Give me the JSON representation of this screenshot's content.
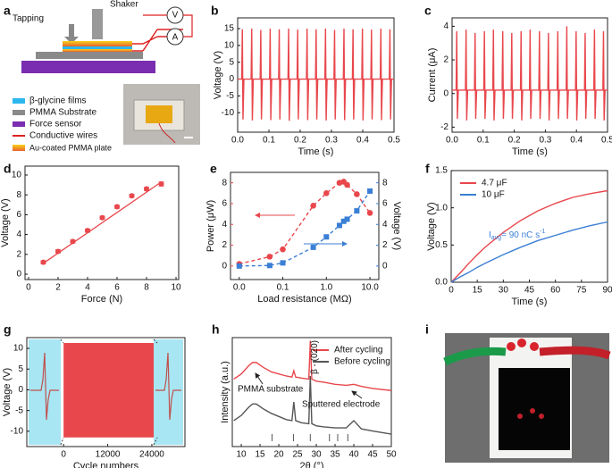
{
  "schematic": {
    "panel": "a",
    "tapping": "Tapping",
    "shaker": "Shaker",
    "voltmeter": "V",
    "ammeter": "A",
    "legend": [
      "β-glycine films",
      "PMMA Substrate",
      "Force sensor",
      "Conductive wires",
      "Au-coated PMMA plate"
    ]
  },
  "photo": {
    "panel": "i"
  },
  "chart_data": [
    {
      "panel": "b",
      "type": "line",
      "x_label": "Time (s)",
      "y_label": "Voltage (V)",
      "xlim": [
        0,
        0.5
      ],
      "xticks": [
        {
          "value": 0,
          "label": "0.0"
        },
        {
          "value": 0.1,
          "label": "0.1"
        },
        {
          "value": 0.2,
          "label": "0.2"
        },
        {
          "value": 0.3,
          "label": "0.3"
        },
        {
          "value": 0.4,
          "label": "0.4"
        },
        {
          "value": 0.5,
          "label": "0.5"
        }
      ],
      "ylim": [
        -15.8,
        18.2
      ],
      "yticks": [
        -10,
        -5,
        0,
        5,
        10,
        15
      ],
      "x": [
        0,
        0.013,
        0.015,
        0.017,
        0.02,
        0.043,
        0.045,
        0.047,
        0.05,
        0.072,
        0.074,
        0.076,
        0.079,
        0.102,
        0.104,
        0.106,
        0.109,
        0.131,
        0.133,
        0.135,
        0.138,
        0.161,
        0.163,
        0.165,
        0.168,
        0.19,
        0.192,
        0.194,
        0.197,
        0.22,
        0.222,
        0.224,
        0.227,
        0.249,
        0.251,
        0.253,
        0.256,
        0.279,
        0.281,
        0.283,
        0.286,
        0.308,
        0.31,
        0.312,
        0.315,
        0.338,
        0.34,
        0.342,
        0.345,
        0.367,
        0.369,
        0.371,
        0.374,
        0.397,
        0.399,
        0.401,
        0.404,
        0.426,
        0.428,
        0.43,
        0.433,
        0.456,
        0.458,
        0.46,
        0.463,
        0.485,
        0.487,
        0.489,
        0.492,
        0.5
      ],
      "series": [
        {
          "color": "#e8474c",
          "values": [
            0,
            0,
            14.8,
            -12,
            0,
            0,
            15,
            -12.3,
            0,
            0,
            14.6,
            -12,
            0,
            0,
            15,
            -12.2,
            0,
            0,
            14.8,
            -12,
            0,
            0,
            15,
            -12.4,
            0,
            0,
            14.7,
            -12,
            0,
            0,
            15,
            -12.2,
            0,
            0,
            14.8,
            -12,
            0,
            0,
            15,
            -12.3,
            0,
            0,
            14.6,
            -12,
            0,
            0,
            15,
            -12.2,
            0,
            0,
            14.8,
            -12,
            0,
            0,
            15,
            -12.3,
            0,
            0,
            14.7,
            -12,
            0,
            0,
            15,
            -12.2,
            0,
            0,
            14.8,
            -12,
            0,
            0
          ]
        }
      ]
    },
    {
      "panel": "c",
      "type": "line",
      "x_label": "Time (s)",
      "y_label": "Current (μA)",
      "xlim": [
        0,
        0.5
      ],
      "xticks": [
        {
          "value": 0,
          "label": "0.0"
        },
        {
          "value": 0.1,
          "label": "0.1"
        },
        {
          "value": 0.2,
          "label": "0.2"
        },
        {
          "value": 0.3,
          "label": "0.3"
        },
        {
          "value": 0.4,
          "label": "0.4"
        },
        {
          "value": 0.5,
          "label": "0.5"
        }
      ],
      "ylim": [
        -2.3,
        4.5
      ],
      "yticks": [
        -2,
        0,
        2,
        4
      ],
      "x": [
        0,
        0.013,
        0.015,
        0.017,
        0.02,
        0.043,
        0.045,
        0.047,
        0.05,
        0.072,
        0.074,
        0.076,
        0.079,
        0.102,
        0.104,
        0.106,
        0.109,
        0.131,
        0.133,
        0.135,
        0.138,
        0.161,
        0.163,
        0.165,
        0.168,
        0.19,
        0.192,
        0.194,
        0.197,
        0.22,
        0.222,
        0.224,
        0.227,
        0.249,
        0.251,
        0.253,
        0.256,
        0.279,
        0.281,
        0.283,
        0.286,
        0.308,
        0.31,
        0.312,
        0.315,
        0.338,
        0.34,
        0.342,
        0.345,
        0.367,
        0.369,
        0.371,
        0.374,
        0.397,
        0.399,
        0.401,
        0.404,
        0.426,
        0.428,
        0.43,
        0.433,
        0.456,
        0.458,
        0.46,
        0.463,
        0.485,
        0.487,
        0.489,
        0.492,
        0.5
      ],
      "series": [
        {
          "color": "#e8474c",
          "values": [
            0.2,
            0.2,
            3.7,
            -1.5,
            0.2,
            0.2,
            3.8,
            -1.6,
            0.2,
            0.2,
            3.6,
            -1.5,
            0.2,
            0.2,
            3.7,
            -1.5,
            0.2,
            0.2,
            3.8,
            -1.6,
            0.2,
            0.2,
            3.7,
            -1.5,
            0.2,
            0.2,
            3.6,
            -1.5,
            0.2,
            0.2,
            3.7,
            -1.6,
            0.2,
            0.2,
            3.8,
            -1.5,
            0.2,
            0.2,
            3.7,
            -1.5,
            0.2,
            0.2,
            3.6,
            -1.6,
            0.2,
            0.2,
            3.7,
            -1.5,
            0.2,
            0.2,
            4.0,
            -1.5,
            0.2,
            0.2,
            3.7,
            -1.6,
            0.2,
            0.2,
            3.6,
            -1.5,
            0.2,
            0.2,
            3.8,
            -1.5,
            0.2,
            0.2,
            3.7,
            -1.6,
            0.2,
            0.2
          ]
        }
      ]
    },
    {
      "panel": "d",
      "type": "scatter",
      "x_label": "Force (N)",
      "y_label": "Voltage (V)",
      "xlim": [
        -0.24,
        10.18
      ],
      "xticks": [
        0,
        2,
        4,
        6,
        8,
        10
      ],
      "ylim": [
        -0.54,
        10.9
      ],
      "yticks": [
        0,
        2,
        4,
        6,
        8,
        10
      ],
      "color": "#e8474c",
      "x": [
        1,
        2,
        3,
        4,
        5,
        6,
        7,
        8,
        9
      ],
      "values": [
        1.2,
        2.3,
        3.3,
        4.4,
        5.7,
        6.8,
        7.9,
        8.6,
        9.1
      ],
      "errors": [
        0.15,
        0.15,
        0.15,
        0.15,
        0.15,
        0.15,
        0.15,
        0.15,
        0.2
      ],
      "trend": {
        "x": [
          1,
          9
        ],
        "values": [
          1.1,
          9.3
        ]
      }
    },
    {
      "panel": "e",
      "type": "line",
      "x_label": "Load resistance (MΩ)",
      "y_label": "Power (μW)",
      "y2_label": "Voltage (V)",
      "xlog": true,
      "xlim": [
        0.0063,
        16
      ],
      "xticks": [
        {
          "value": 0.01,
          "label": "0.0"
        },
        {
          "value": 0.1,
          "label": "0.1"
        },
        {
          "value": 1,
          "label": "1.0"
        },
        {
          "value": 10,
          "label": "10.0"
        }
      ],
      "ylim": [
        -1.3,
        9
      ],
      "yticks": [
        0,
        2,
        4,
        6,
        8
      ],
      "y2lim": [
        -1.3,
        9
      ],
      "y2ticks": [
        0,
        2,
        4,
        6,
        8
      ],
      "x": [
        0.01,
        0.05,
        0.1,
        0.5,
        1,
        2,
        2.5,
        3,
        5,
        10
      ],
      "series": [
        {
          "color": "#e8474c",
          "marker": "circle",
          "dash": true,
          "values": [
            0.2,
            0.9,
            1.6,
            5.8,
            7.0,
            8.0,
            8.1,
            7.8,
            6.9,
            5.1
          ]
        },
        {
          "color": "#3a7fd5",
          "marker": "square",
          "dash": true,
          "axis": "y2",
          "values": [
            0,
            0.05,
            0.3,
            1.8,
            2.8,
            3.9,
            4.3,
            4.5,
            5.3,
            7.2
          ]
        }
      ]
    },
    {
      "panel": "f",
      "type": "line",
      "x_label": "Time (s)",
      "y_label": "Voltage (V)",
      "xlim": [
        0,
        90
      ],
      "xticks": [
        0,
        15,
        30,
        45,
        60,
        75,
        90
      ],
      "ylim": [
        0,
        1.5
      ],
      "yticks": [
        {
          "value": 0,
          "label": "0.0"
        },
        {
          "value": 0.5,
          "label": "0.5"
        },
        {
          "value": 1,
          "label": "1.0"
        },
        {
          "value": 1.5,
          "label": "1.5"
        }
      ],
      "legend": "upper left",
      "x": [
        0,
        5,
        10,
        15,
        20,
        30,
        40,
        50,
        60,
        70,
        80,
        90
      ],
      "series": [
        {
          "name": "4.7 μF",
          "color": "#e8474c",
          "values": [
            0,
            0.12,
            0.25,
            0.37,
            0.48,
            0.67,
            0.83,
            0.96,
            1.06,
            1.14,
            1.19,
            1.23
          ]
        },
        {
          "name": "10 μF",
          "color": "#3a7fd5",
          "values": [
            0,
            0.07,
            0.13,
            0.2,
            0.26,
            0.37,
            0.47,
            0.56,
            0.63,
            0.7,
            0.76,
            0.81
          ]
        }
      ],
      "annotation_parts": [
        "I",
        "avg",
        "= 90 nC s",
        "-1"
      ]
    },
    {
      "panel": "g",
      "type": "band",
      "x_label": "Cycle numbers",
      "y_label": "Voltage (V)",
      "xlim": [
        -10000,
        33000
      ],
      "xticks": [
        0,
        12000,
        24000
      ],
      "ylim": [
        -13.7,
        12.6
      ],
      "yticks": [
        -10,
        -5,
        0,
        5,
        10
      ],
      "color": "#e8474c",
      "x": [
        0,
        24500
      ],
      "values": [
        11.3,
        -11.5
      ]
    },
    {
      "panel": "h",
      "type": "line",
      "x_label": "2θ (°)",
      "y_label": "Intensity (a.u.)",
      "xlim": [
        7.6,
        50
      ],
      "xticks": [
        10,
        15,
        20,
        25,
        30,
        35,
        40,
        45,
        50
      ],
      "ylim": [
        0,
        10.5
      ],
      "legend": "upper right",
      "x": [
        8,
        10,
        12,
        13,
        14,
        16,
        18,
        20,
        22,
        23.5,
        24,
        24.5,
        26,
        28,
        28.4,
        28.8,
        30,
        32,
        35,
        38,
        40,
        42,
        45,
        50
      ],
      "series": [
        {
          "name": "After cycling",
          "color": "#e8474c",
          "values": [
            6.5,
            7.0,
            7.8,
            8.1,
            8.1,
            7.6,
            7.2,
            7.0,
            6.8,
            6.7,
            7.3,
            6.7,
            6.6,
            6.5,
            10.2,
            6.5,
            6.3,
            6.2,
            6.0,
            5.9,
            6.0,
            5.8,
            5.6,
            5.4
          ]
        },
        {
          "name": "Before cycling",
          "color": "#555555",
          "values": [
            2.5,
            3.0,
            3.8,
            4.1,
            4.1,
            3.6,
            3.2,
            2.9,
            2.6,
            2.5,
            4.3,
            2.5,
            2.3,
            2.2,
            6.8,
            2.2,
            2.0,
            1.9,
            1.8,
            1.8,
            2.5,
            1.7,
            1.5,
            1.2
          ]
        }
      ],
      "reference_peaks": [
        18.2,
        23.9,
        28.4,
        33.5,
        35.7,
        38.4
      ],
      "annotations": [
        "β - (020)",
        "PMMA substrate",
        "Sputtered electrode"
      ]
    }
  ]
}
